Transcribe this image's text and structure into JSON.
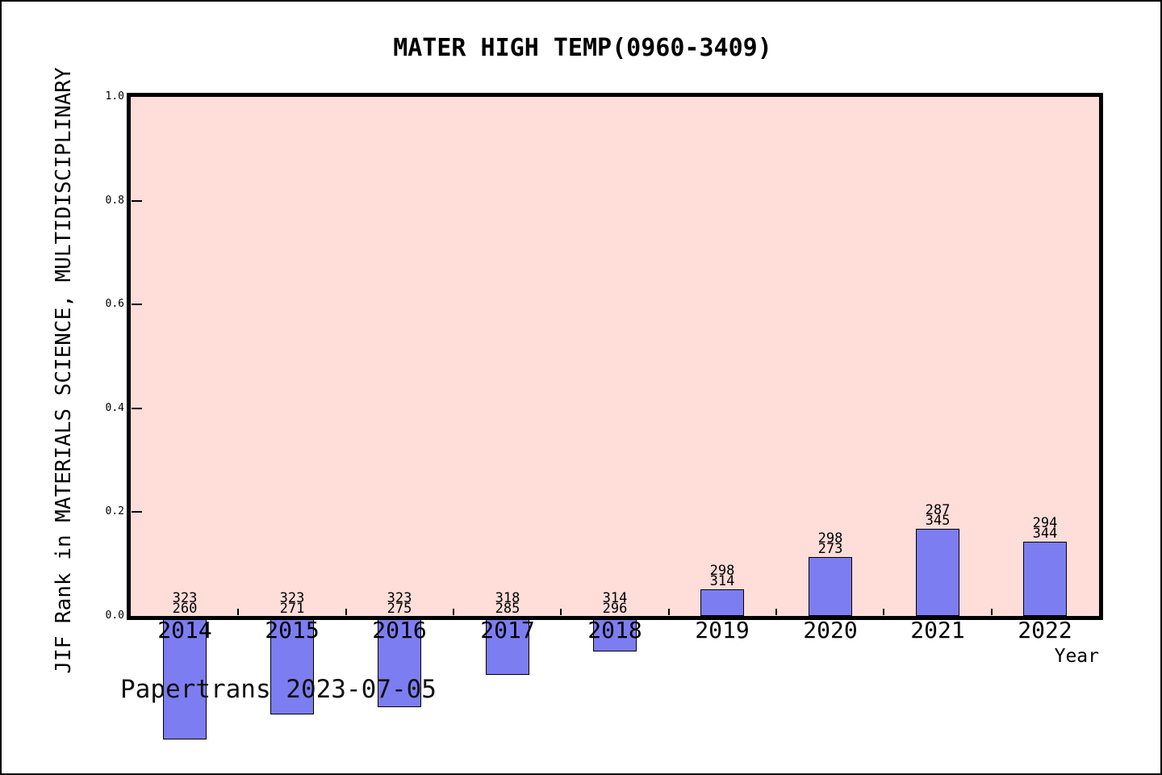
{
  "figure": {
    "title": "MATER HIGH TEMP(0960-3409)",
    "watermark": "Papertrans 2023-07-05"
  },
  "chart_data": {
    "type": "bar",
    "title": "MATER HIGH TEMP(0960-3409)",
    "xlabel": "Year",
    "ylabel": "JIF Rank in MATERIALS SCIENCE, MULTIDISCIPLINARY",
    "ylim": [
      0.0,
      1.0
    ],
    "ytick_labels": [
      "0.0",
      "0.2",
      "0.4",
      "0.6",
      "0.8",
      "1.0"
    ],
    "grid": false,
    "legend": false,
    "categories": [
      "2014",
      "2015",
      "2016",
      "2017",
      "2018",
      "2019",
      "2020",
      "2021",
      "2022"
    ],
    "bars": [
      {
        "year": "2014",
        "label_line1": "323",
        "label_line2": "260",
        "value": -0.238
      },
      {
        "year": "2015",
        "label_line1": "323",
        "label_line2": "271",
        "value": -0.19
      },
      {
        "year": "2016",
        "label_line1": "323",
        "label_line2": "275",
        "value": -0.175
      },
      {
        "year": "2017",
        "label_line1": "318",
        "label_line2": "285",
        "value": -0.114
      },
      {
        "year": "2018",
        "label_line1": "314",
        "label_line2": "296",
        "value": -0.069
      },
      {
        "year": "2019",
        "label_line1": "298",
        "label_line2": "314",
        "value": 0.051
      },
      {
        "year": "2020",
        "label_line1": "298",
        "label_line2": "273",
        "value": 0.114
      },
      {
        "year": "2021",
        "label_line1": "287",
        "label_line2": "345",
        "value": 0.168
      },
      {
        "year": "2022",
        "label_line1": "294",
        "label_line2": "344",
        "value": 0.143
      }
    ],
    "annotations": {
      "watermark": "Papertrans 2023-07-05"
    },
    "colors": {
      "plot_background": "#ffddd9",
      "bar_fill": "#7d7df2",
      "bar_edge": "#000000",
      "frame": "#000000",
      "text": "#000000",
      "figure_background": "#ffffff"
    }
  }
}
